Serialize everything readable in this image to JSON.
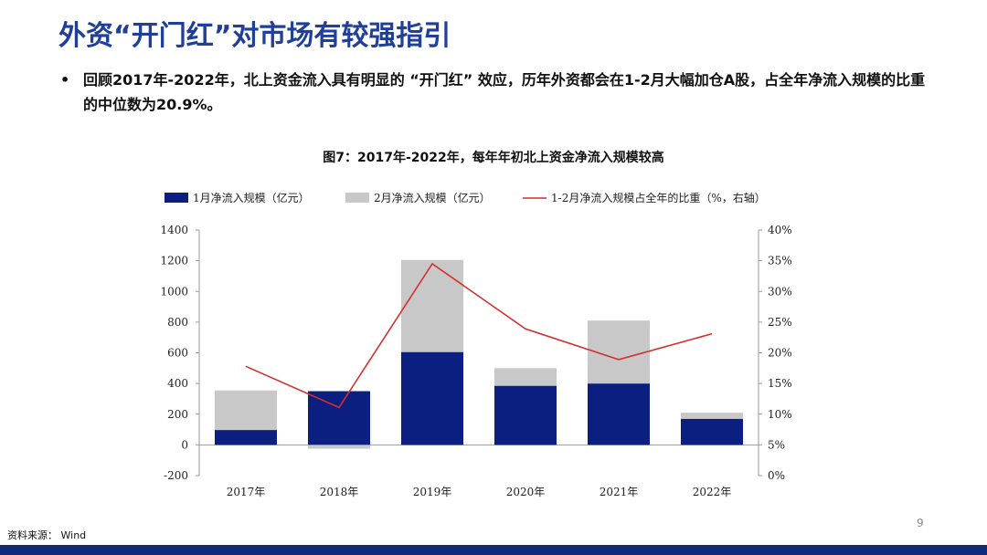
{
  "slide": {
    "title": "外资“开门红”对市场有较强指引",
    "bullet_symbol": "•",
    "bullet_text": "回顾2017年-2022年，北上资金流入具有明显的 “开门红” 效应，历年外资都会在1-2月大幅加仓A股，占全年净流入规模的比重的中位数为20.9%。",
    "figure_title": "图7：2017年-2022年，每年年初北上资金净流入规模较高",
    "source_label": "资料来源：",
    "source_value": "Wind",
    "page_number": "9"
  },
  "colors": {
    "title": "#1f3f9a",
    "jan_bar": "#0a1f80",
    "feb_bar": "#c8c8c8",
    "ratio_line": "#d42f2f",
    "bottom_bar": "#0f2a78"
  },
  "chart_data": {
    "type": "bar",
    "stacked": true,
    "categories": [
      "2017年",
      "2018年",
      "2019年",
      "2020年",
      "2021年",
      "2022年"
    ],
    "series": [
      {
        "name": "1月净流入规模（亿元）",
        "type": "bar",
        "axis": "left",
        "values": [
          97,
          350,
          605,
          385,
          400,
          170
        ]
      },
      {
        "name": "2月净流入规模（亿元）",
        "type": "bar",
        "axis": "left",
        "values": [
          258,
          -25,
          600,
          115,
          410,
          40
        ]
      },
      {
        "name": "1-2月净流入规模占全年的比重（%，右轴）",
        "type": "line",
        "axis": "right",
        "values": [
          17.8,
          11.1,
          34.5,
          23.9,
          18.9,
          23.1
        ]
      }
    ],
    "y_left": {
      "min": -200,
      "max": 1400,
      "ticks": [
        -200,
        0,
        200,
        400,
        600,
        800,
        1000,
        1200,
        1400
      ]
    },
    "y_right": {
      "min": 0,
      "max": 40,
      "ticks": [
        0,
        5,
        10,
        15,
        20,
        25,
        30,
        35,
        40
      ],
      "tick_labels": [
        "0%",
        "5%",
        "10%",
        "15%",
        "20%",
        "25%",
        "30%",
        "35%",
        "40%"
      ]
    },
    "legend_position": "top",
    "grid": false
  }
}
